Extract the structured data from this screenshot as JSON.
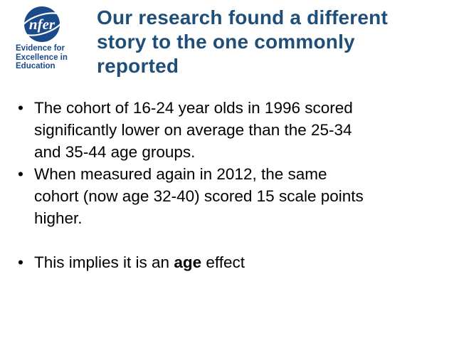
{
  "logo": {
    "wordmark": "nfer",
    "tagline": [
      "Evidence for",
      "Excellence in",
      "Education"
    ],
    "brand_color": "#1b4a8a"
  },
  "slide": {
    "title": "Our research found a different story to the one commonly reported",
    "title_lines": [
      "Our research found a different",
      "story to the one commonly",
      "reported"
    ],
    "title_color": "#1f4e79",
    "bullet_glyph": "•",
    "bullets": [
      {
        "lines": [
          "The cohort of 16-24 year olds in 1996 scored",
          "significantly lower on average than the 25-34",
          "and 35-44 age groups."
        ]
      },
      {
        "lines": [
          "When measured again in 2012, the same",
          "cohort (now age 32-40) scored 15 scale points",
          "higher."
        ]
      },
      {
        "prefix": "This implies it is an ",
        "emphasis": "age",
        "suffix": " effect"
      }
    ]
  }
}
